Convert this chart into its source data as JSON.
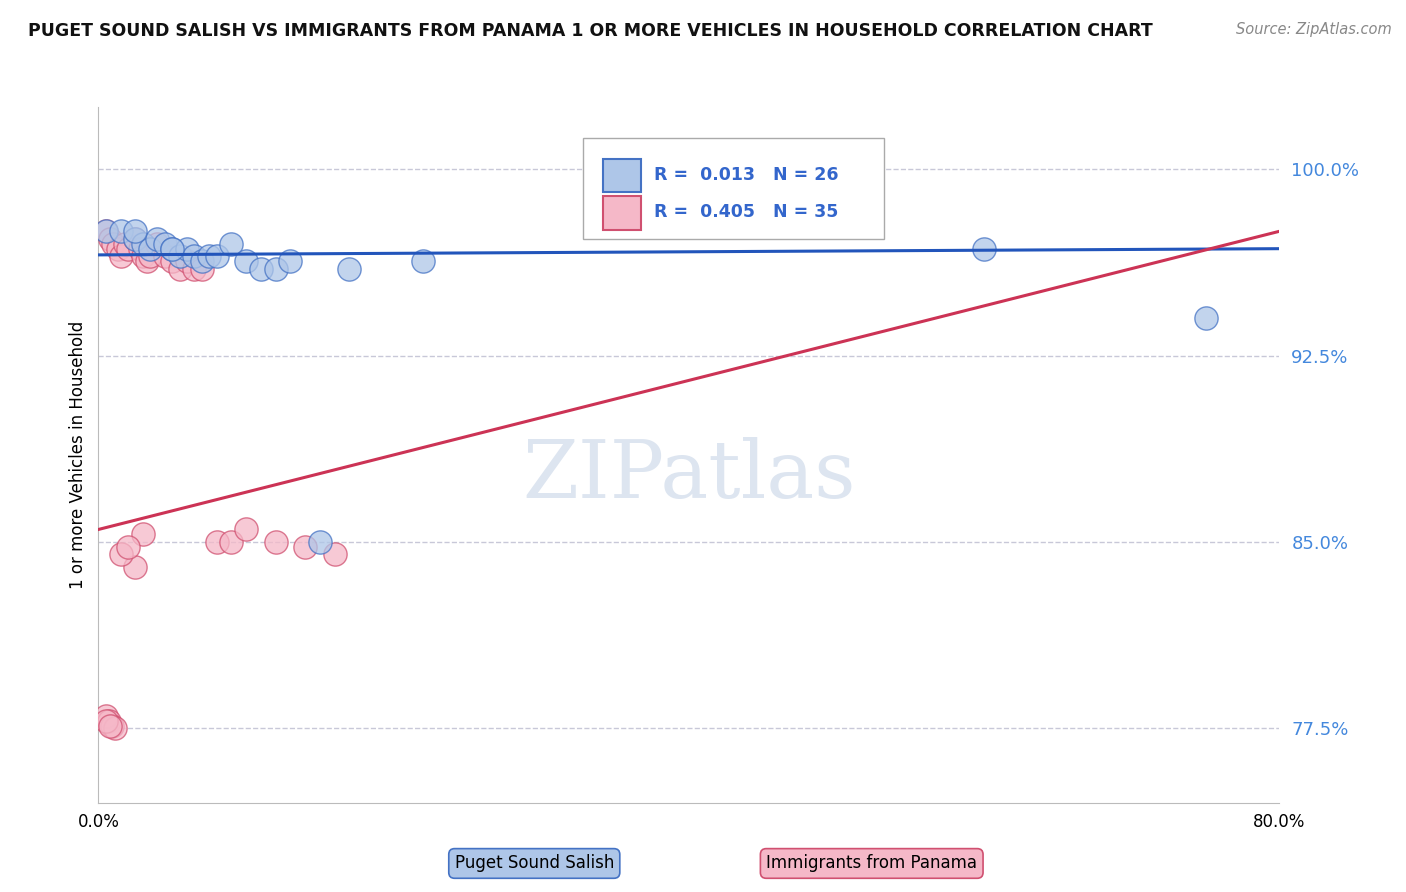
{
  "title": "PUGET SOUND SALISH VS IMMIGRANTS FROM PANAMA 1 OR MORE VEHICLES IN HOUSEHOLD CORRELATION CHART",
  "source": "Source: ZipAtlas.com",
  "ylabel_label": "1 or more Vehicles in Household",
  "ytick_values": [
    0.775,
    0.85,
    0.925,
    1.0
  ],
  "ytick_labels": [
    "77.5%",
    "85.0%",
    "92.5%",
    "100.0%"
  ],
  "xlim": [
    0.0,
    0.8
  ],
  "ylim": [
    0.745,
    1.025
  ],
  "blue_label": "Puget Sound Salish",
  "pink_label": "Immigrants from Panama",
  "blue_R": "0.013",
  "blue_N": "26",
  "pink_R": "0.405",
  "pink_N": "35",
  "blue_color": "#aec6e8",
  "pink_color": "#f5b8c8",
  "blue_edge_color": "#4472c4",
  "pink_edge_color": "#d05070",
  "blue_trend_color": "#2255bb",
  "pink_trend_color": "#cc3355",
  "grid_color": "#c8c8d8",
  "watermark_color": "#dde5f0",
  "background_color": "#ffffff",
  "blue_x": [
    0.005,
    0.015,
    0.025,
    0.03,
    0.035,
    0.04,
    0.045,
    0.05,
    0.055,
    0.06,
    0.065,
    0.07,
    0.075,
    0.08,
    0.09,
    0.1,
    0.11,
    0.12,
    0.13,
    0.15,
    0.17,
    0.22,
    0.6,
    0.75,
    0.025,
    0.05
  ],
  "blue_y": [
    0.975,
    0.975,
    0.972,
    0.97,
    0.968,
    0.972,
    0.97,
    0.968,
    0.965,
    0.968,
    0.965,
    0.963,
    0.965,
    0.965,
    0.97,
    0.963,
    0.96,
    0.96,
    0.963,
    0.85,
    0.96,
    0.963,
    0.968,
    0.94,
    0.975,
    0.968
  ],
  "pink_x": [
    0.005,
    0.008,
    0.01,
    0.013,
    0.015,
    0.018,
    0.02,
    0.025,
    0.028,
    0.03,
    0.033,
    0.035,
    0.04,
    0.045,
    0.05,
    0.055,
    0.06,
    0.065,
    0.07,
    0.08,
    0.09,
    0.1,
    0.12,
    0.14,
    0.16,
    0.03,
    0.005,
    0.007,
    0.009,
    0.011,
    0.025,
    0.015,
    0.02,
    0.005,
    0.008
  ],
  "pink_y": [
    0.975,
    0.972,
    0.97,
    0.968,
    0.965,
    0.97,
    0.968,
    0.972,
    0.968,
    0.965,
    0.963,
    0.965,
    0.97,
    0.965,
    0.963,
    0.96,
    0.963,
    0.96,
    0.96,
    0.85,
    0.85,
    0.855,
    0.85,
    0.848,
    0.845,
    0.853,
    0.78,
    0.778,
    0.776,
    0.775,
    0.84,
    0.845,
    0.848,
    0.778,
    0.776
  ],
  "blue_trend_x0": 0.0,
  "blue_trend_x1": 0.8,
  "blue_trend_y0": 0.9655,
  "blue_trend_y1": 0.968,
  "pink_trend_x0": 0.0,
  "pink_trend_x1": 0.8,
  "pink_trend_y0": 0.855,
  "pink_trend_y1": 0.975
}
